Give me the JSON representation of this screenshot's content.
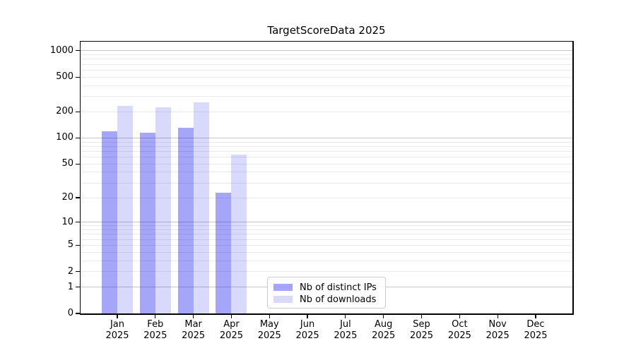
{
  "chart_data": {
    "type": "bar",
    "title": "TargetScoreData 2025",
    "scale": "log1p",
    "x_months": [
      "Jan",
      "Feb",
      "Mar",
      "Apr",
      "May",
      "Jun",
      "Jul",
      "Aug",
      "Sep",
      "Oct",
      "Nov",
      "Dec"
    ],
    "x_year": "2025",
    "series": [
      {
        "name": "Nb of distinct IPs",
        "swatch_hex": "#a8a8f6",
        "fill": "rgba(0,0,238,0.35)",
        "values": [
          120,
          115,
          132,
          23,
          0,
          0,
          0,
          0,
          0,
          0,
          0,
          0
        ]
      },
      {
        "name": "Nb of downloads",
        "swatch_hex": "#dadafb",
        "fill": "rgba(0,0,238,0.15)",
        "values": [
          235,
          225,
          258,
          64,
          0,
          0,
          0,
          0,
          0,
          0,
          0,
          0
        ]
      }
    ],
    "yticks": [
      0,
      1,
      2,
      5,
      10,
      20,
      50,
      100,
      200,
      500,
      1000
    ],
    "ylim": [
      0,
      1270
    ],
    "grid": true,
    "legend_position": "inside lower-center-left",
    "xlabel": "",
    "ylabel": ""
  },
  "colors": {
    "background": "#ffffff",
    "spine": "#000000",
    "text": "#000000",
    "major_grid": "#c6c6c6",
    "minor_grid": "#e9e9e9",
    "legend_border": "#cccccc"
  }
}
